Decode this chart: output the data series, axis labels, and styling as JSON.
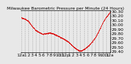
{
  "title": "Milwaukee Barometric Pressure per Minute (24 Hours)",
  "background_color": "#e8e8e8",
  "plot_bg_color": "#e8e8e8",
  "grid_color": "#aaaaaa",
  "line_color": "#dd0000",
  "y_min": 29.38,
  "y_max": 30.32,
  "y_ticks": [
    29.4,
    29.5,
    29.6,
    29.7,
    29.8,
    29.9,
    30.0,
    30.1,
    30.2,
    30.3
  ],
  "y_tick_labels": [
    "29.40",
    "29.50",
    "29.60",
    "29.70",
    "29.80",
    "29.90",
    "30.00",
    "30.10",
    "30.20",
    "30.30"
  ],
  "x_num_points": 1440,
  "x_tick_positions": [
    0,
    60,
    120,
    180,
    240,
    300,
    360,
    420,
    480,
    540,
    600,
    660,
    720,
    780,
    840,
    900,
    960,
    1020,
    1080,
    1140,
    1200,
    1260,
    1320,
    1380,
    1439
  ],
  "x_tick_labels": [
    "12a",
    "1",
    "2",
    "3",
    "4",
    "5",
    "6",
    "7",
    "8",
    "9",
    "10",
    "11",
    "12p",
    "1",
    "2",
    "3",
    "4",
    "5",
    "6",
    "7",
    "8",
    "9",
    "10",
    "11",
    "12a"
  ],
  "marker_size": 0.7,
  "font_size": 4.5,
  "title_font_size": 4.5,
  "curve_points": [
    [
      0.0,
      30.16
    ],
    [
      0.04,
      30.13
    ],
    [
      0.08,
      30.08
    ],
    [
      0.12,
      29.97
    ],
    [
      0.16,
      29.88
    ],
    [
      0.2,
      29.83
    ],
    [
      0.24,
      29.79
    ],
    [
      0.28,
      29.8
    ],
    [
      0.32,
      29.82
    ],
    [
      0.36,
      29.8
    ],
    [
      0.4,
      29.76
    ],
    [
      0.44,
      29.72
    ],
    [
      0.48,
      29.68
    ],
    [
      0.52,
      29.63
    ],
    [
      0.55,
      29.58
    ],
    [
      0.58,
      29.52
    ],
    [
      0.61,
      29.47
    ],
    [
      0.64,
      29.43
    ],
    [
      0.66,
      29.41
    ],
    [
      0.68,
      29.42
    ],
    [
      0.7,
      29.44
    ],
    [
      0.72,
      29.46
    ],
    [
      0.74,
      29.5
    ],
    [
      0.77,
      29.55
    ],
    [
      0.8,
      29.62
    ],
    [
      0.83,
      29.7
    ],
    [
      0.86,
      29.8
    ],
    [
      0.89,
      29.92
    ],
    [
      0.92,
      30.05
    ],
    [
      0.95,
      30.15
    ],
    [
      0.98,
      30.22
    ],
    [
      1.0,
      30.28
    ]
  ]
}
